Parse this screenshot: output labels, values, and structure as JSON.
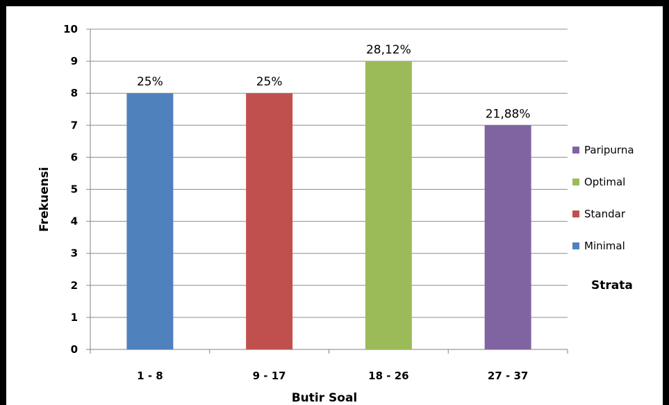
{
  "chart_data": {
    "type": "bar",
    "xlabel": "Butir Soal",
    "ylabel": "Frekuensi",
    "ylim": [
      0,
      10
    ],
    "yticks": [
      0,
      1,
      2,
      3,
      4,
      5,
      6,
      7,
      8,
      9,
      10
    ],
    "grid": true,
    "categories": [
      "1 - 8",
      "9 - 17",
      "18 - 26",
      "27 - 37"
    ],
    "values": [
      8,
      8,
      9,
      7
    ],
    "data_labels": [
      "25%",
      "25%",
      "28,12%",
      "21,88%"
    ],
    "bar_colors": [
      "#4F81BD",
      "#C0504D",
      "#9BBB59",
      "#8064A2"
    ],
    "legend": {
      "title": "Strata",
      "position": "right",
      "items": [
        {
          "label": "Paripurna",
          "color": "#8064A2"
        },
        {
          "label": "Optimal",
          "color": "#9BBB59"
        },
        {
          "label": "Standar",
          "color": "#C0504D"
        },
        {
          "label": "Minimal",
          "color": "#4F81BD"
        }
      ]
    }
  }
}
